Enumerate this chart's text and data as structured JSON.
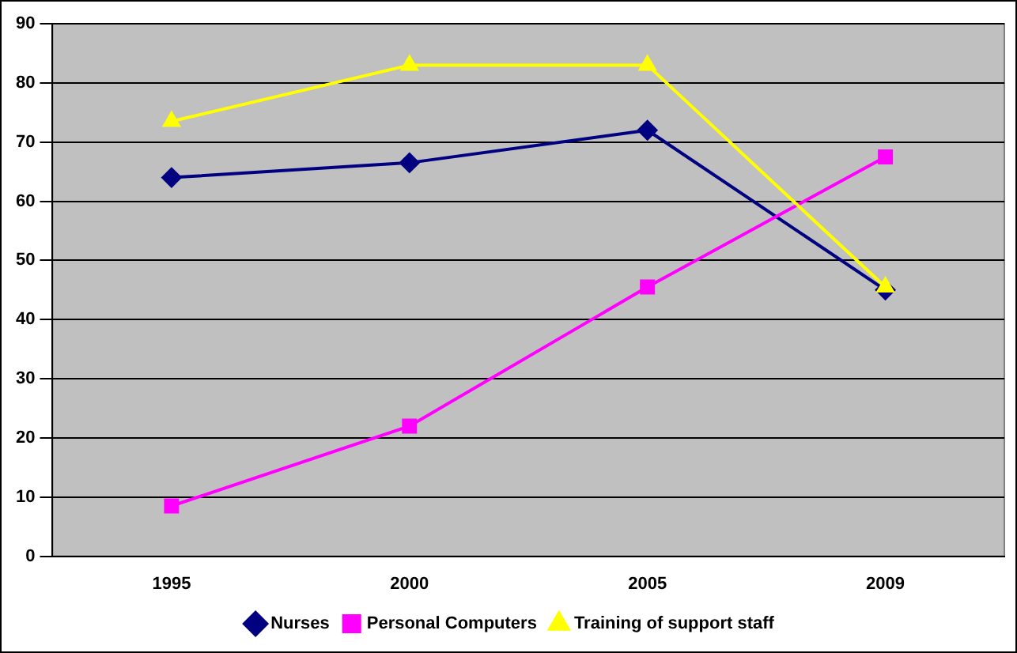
{
  "chart_data": {
    "type": "line",
    "categories": [
      "1995",
      "2000",
      "2005",
      "2009"
    ],
    "series": [
      {
        "name": "Nurses",
        "color": "#000080",
        "marker": "diamond",
        "values": [
          64,
          66.5,
          72,
          45
        ]
      },
      {
        "name": "Personal Computers",
        "color": "#ff00ff",
        "marker": "square",
        "values": [
          8.5,
          22,
          45.5,
          67.5
        ]
      },
      {
        "name": "Training of support staff",
        "color": "#ffff00",
        "marker": "triangle",
        "values": [
          73.5,
          83,
          83,
          45.5
        ]
      }
    ],
    "ylim": [
      0,
      90
    ],
    "yticks": [
      0,
      10,
      20,
      30,
      40,
      50,
      60,
      70,
      80,
      90
    ],
    "grid": "y",
    "legend": "bottom"
  }
}
